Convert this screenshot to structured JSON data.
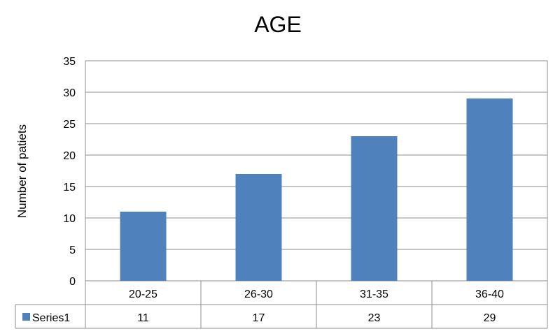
{
  "chart_data": {
    "type": "bar",
    "title": "AGE",
    "ylabel": "Number of patiets",
    "xlabel": "",
    "categories": [
      "20-25",
      "26-30",
      "31-35",
      "36-40"
    ],
    "series": [
      {
        "name": "Series1",
        "values": [
          11,
          17,
          23,
          29
        ],
        "color": "#4F81BD"
      }
    ],
    "ylim": [
      0,
      35
    ],
    "yticks": [
      0,
      5,
      10,
      15,
      20,
      25,
      30,
      35
    ],
    "grid": true,
    "legend": "data-table",
    "data_table": true
  }
}
